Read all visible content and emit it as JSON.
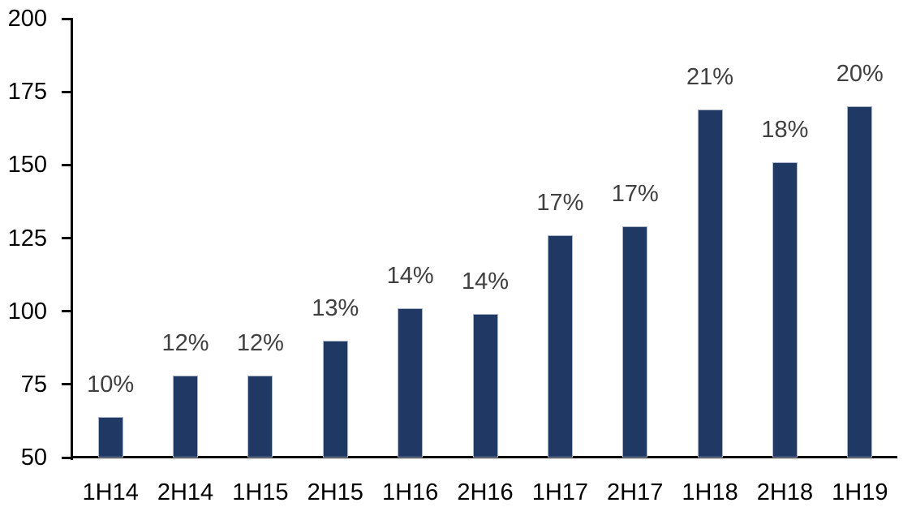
{
  "chart_data": {
    "type": "bar",
    "categories": [
      "1H14",
      "2H14",
      "1H15",
      "2H15",
      "1H16",
      "2H16",
      "1H17",
      "2H17",
      "1H18",
      "2H18",
      "1H19"
    ],
    "values": [
      64,
      78,
      78,
      90,
      101,
      99,
      126,
      129,
      169,
      151,
      170
    ],
    "data_labels": [
      "10%",
      "12%",
      "12%",
      "13%",
      "14%",
      "14%",
      "17%",
      "17%",
      "21%",
      "18%",
      "20%"
    ],
    "ylim": [
      50,
      200
    ],
    "yticks": [
      50,
      75,
      100,
      125,
      150,
      175,
      200
    ],
    "grid": false,
    "legend": false,
    "bar_orientation": "vertical",
    "colors": {
      "bar_fill": "#1F3864",
      "bar_border": "#A9B4CB",
      "data_label": "#404040",
      "axis_line": "#000000",
      "tick_label": "#000000",
      "background": "#FFFFFF"
    }
  }
}
